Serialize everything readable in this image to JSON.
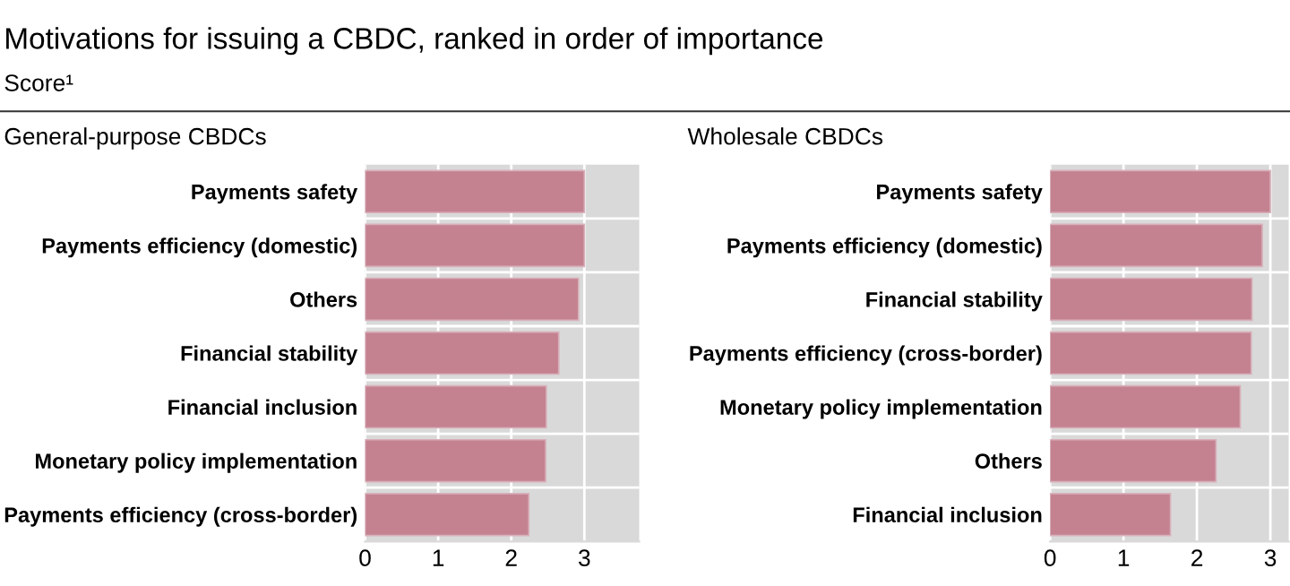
{
  "chart_data": [
    {
      "type": "bar",
      "orientation": "horizontal",
      "title": "General-purpose CBDCs",
      "annotations": [
        "Motivations for issuing a CBDC, ranked in order of importance",
        "Score¹"
      ],
      "categories": [
        "Payments safety",
        "Payments efficiency (domestic)",
        "Others",
        "Financial stability",
        "Financial inclusion",
        "Monetary policy implementation",
        "Payments efficiency (cross-border)"
      ],
      "values": [
        3.0,
        3.0,
        2.92,
        2.65,
        2.48,
        2.47,
        2.24
      ],
      "color": "#c48291",
      "xlim": [
        0,
        3.75
      ],
      "xticks": [
        0,
        1,
        2,
        3
      ],
      "grid": "x"
    },
    {
      "type": "bar",
      "orientation": "horizontal",
      "title": "Wholesale CBDCs",
      "categories": [
        "Payments safety",
        "Payments efficiency (domestic)",
        "Financial stability",
        "Payments efficiency (cross-border)",
        "Monetary policy implementation",
        "Others",
        "Financial inclusion"
      ],
      "values": [
        3.0,
        2.89,
        2.75,
        2.74,
        2.59,
        2.26,
        1.64
      ],
      "color": "#c48291",
      "xlim": [
        0,
        3.25
      ],
      "xticks": [
        0,
        1,
        2,
        3
      ],
      "grid": "x"
    }
  ]
}
